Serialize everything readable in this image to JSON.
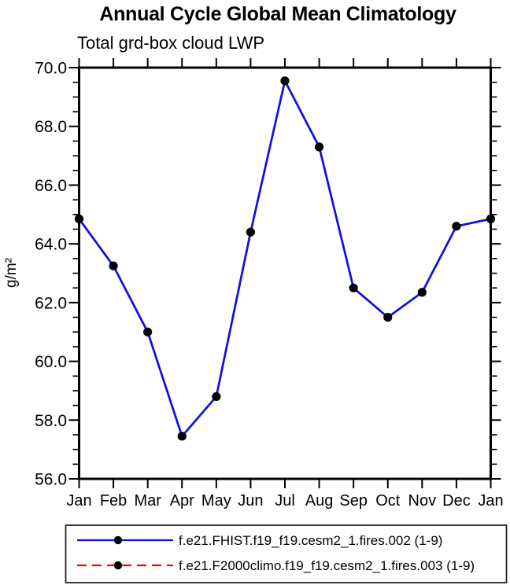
{
  "chart_data": {
    "type": "line",
    "title": "Annual Cycle Global Mean Climatology",
    "subtitle": "Total grd-box cloud LWP",
    "xlabel": "",
    "ylabel": "g/m²",
    "x_categories": [
      "Jan",
      "Feb",
      "Mar",
      "Apr",
      "May",
      "Jun",
      "Jul",
      "Aug",
      "Sep",
      "Oct",
      "Nov",
      "Dec",
      "Jan"
    ],
    "ylim": [
      56.0,
      70.0
    ],
    "yticks": [
      56,
      58,
      60,
      62,
      64,
      66,
      68,
      70
    ],
    "ytick_labels": [
      "56.0",
      "58.0",
      "60.0",
      "62.0",
      "64.0",
      "66.0",
      "68.0",
      "70.0"
    ],
    "yminor_step": 0.5,
    "grid": "off",
    "frame_style": "boxed-outward-ticks",
    "legend_position": "bottom-outside-boxed",
    "axis_color": "#000000",
    "series": [
      {
        "name": "f.e21.FHIST.f19_f19.cesm2_1.fires.002 (1-9)",
        "color": "#1111dd",
        "line_style": "solid",
        "marker": "filled-circle",
        "marker_color": "#000000",
        "values": [
          64.85,
          63.25,
          61.0,
          57.45,
          58.8,
          64.4,
          69.55,
          67.3,
          62.5,
          61.5,
          62.35,
          64.6,
          64.85
        ]
      },
      {
        "name": "f.e21.F2000climo.f19_f19.cesm2_1.fires.003 (1-9)",
        "color": "#ff0000",
        "line_style": "dashed",
        "marker": "filled-circle",
        "marker_color": "#000000",
        "visible_in_plot": false
      }
    ]
  }
}
